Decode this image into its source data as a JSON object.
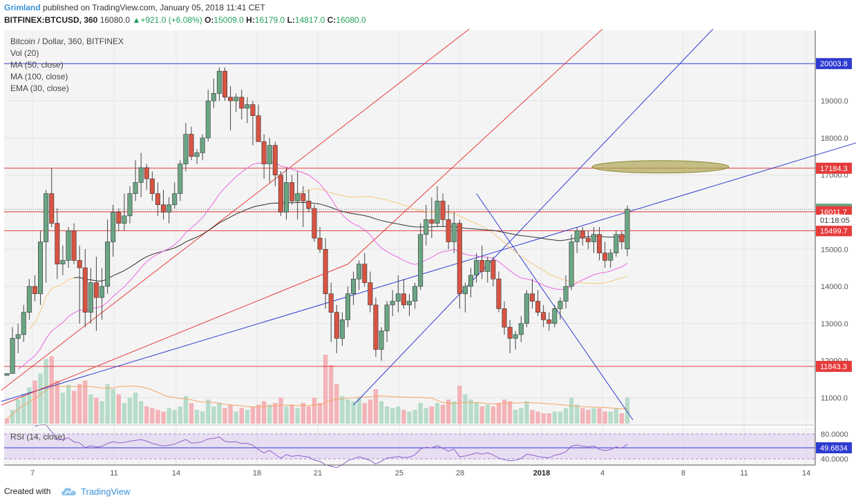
{
  "header": {
    "author": "Grimland",
    "published": "published on TradingView.com, January 05, 2018 11:41 CET",
    "symbol": "BITFINEX:BTCUSD, 360",
    "price": "16080.0",
    "change": "+921.0 (+6.08%)",
    "o_label": "O:",
    "o_value": "15009.0",
    "h_label": "H:",
    "h_value": "16179.0",
    "l_label": "L:",
    "l_value": "14817.0",
    "c_label": "C:",
    "c_value": "16080.0"
  },
  "legend": {
    "title": "Bitcoin / Dollar, 360, BITFINEX",
    "items": [
      "Vol (20)",
      "MA (50, close)",
      "MA (100, close)",
      "EMA (30, close)"
    ]
  },
  "rsi_label": "RSI (14, close)",
  "footer": {
    "created": "Created with",
    "brand": "TradingView"
  },
  "colors": {
    "up": "#6ba583",
    "down": "#d75442",
    "vol_up": "#b7dcc9",
    "vol_down": "#f3b3b7",
    "ma50": "#f5c77e",
    "ma100": "#333333",
    "ema30": "#e868e2",
    "hline_red": "#e63b3b",
    "trend_blue": "#2e3bd1",
    "ellipse": "#a7a14a"
  },
  "chart_data": {
    "type": "candlestick",
    "symbol": "BTCUSD",
    "timeframe": "360",
    "ylim": [
      10300,
      20900
    ],
    "y_ticks": [
      "11000.0",
      "12000.0",
      "13000.0",
      "14000.0",
      "15000.0",
      "16000.0",
      "17000.0",
      "18000.0",
      "19000.0"
    ],
    "x_ticks": [
      "7",
      "11",
      "14",
      "18",
      "21",
      "25",
      "28",
      "2018",
      "4",
      "8",
      "11",
      "14"
    ],
    "price_labels": [
      {
        "value": 20003.8,
        "label": "20003.8",
        "color": "#2e3bd1"
      },
      {
        "value": 17184.3,
        "label": "17184.3",
        "color": "#e63b3b"
      },
      {
        "value": 16080.0,
        "label": "16080.0",
        "color": "#6ba583"
      },
      {
        "value": 16011.7,
        "label": "16011.7",
        "color": "#e63b3b"
      },
      {
        "value": 15499.7,
        "label": "15499.7",
        "color": "#e63b3b"
      },
      {
        "value": 11843.3,
        "label": "11843.3",
        "color": "#e63b3b"
      }
    ],
    "countdown": "01:18:05",
    "horizontal_lines": [
      20003.8,
      17184.3,
      16011.7,
      15499.7,
      11843.3
    ],
    "ohlc": [
      [
        11600,
        11650,
        11600,
        11650
      ],
      [
        11650,
        12900,
        11650,
        12600
      ],
      [
        12600,
        13000,
        12200,
        12700
      ],
      [
        12700,
        13500,
        12500,
        13300
      ],
      [
        13300,
        14200,
        13100,
        14000
      ],
      [
        14000,
        14300,
        13600,
        13800
      ],
      [
        13800,
        15500,
        13500,
        15200
      ],
      [
        15200,
        16600,
        14100,
        16500
      ],
      [
        16500,
        17200,
        15600,
        15700
      ],
      [
        15700,
        16100,
        14200,
        14600
      ],
      [
        14600,
        15100,
        14300,
        14700
      ],
      [
        14700,
        15600,
        14500,
        15500
      ],
      [
        15500,
        15700,
        14600,
        14700
      ],
      [
        14700,
        15100,
        13000,
        14500
      ],
      [
        14500,
        15000,
        12900,
        13300
      ],
      [
        13300,
        14500,
        13000,
        14100
      ],
      [
        14100,
        14800,
        12800,
        13700
      ],
      [
        13700,
        14500,
        13100,
        14000
      ],
      [
        14000,
        15800,
        13800,
        15200
      ],
      [
        15200,
        16200,
        14800,
        16000
      ],
      [
        16000,
        16100,
        15500,
        15700
      ],
      [
        15700,
        16500,
        15500,
        15900
      ],
      [
        15900,
        16700,
        15700,
        16500
      ],
      [
        16500,
        17400,
        16300,
        16800
      ],
      [
        16800,
        17600,
        16400,
        17200
      ],
      [
        17200,
        17300,
        16600,
        16900
      ],
      [
        16900,
        17100,
        16300,
        16500
      ],
      [
        16500,
        16800,
        15900,
        16200
      ],
      [
        16200,
        16600,
        15800,
        16000
      ],
      [
        16000,
        16400,
        15700,
        16200
      ],
      [
        16200,
        16800,
        16100,
        16500
      ],
      [
        16500,
        17400,
        16300,
        17300
      ],
      [
        17300,
        18400,
        17100,
        18100
      ],
      [
        18100,
        18300,
        17400,
        17500
      ],
      [
        17500,
        17700,
        17300,
        17600
      ],
      [
        17600,
        18100,
        17400,
        18000
      ],
      [
        18000,
        19300,
        17900,
        19000
      ],
      [
        19000,
        19600,
        18800,
        19200
      ],
      [
        19200,
        19900,
        19000,
        19800
      ],
      [
        19800,
        19900,
        19000,
        19100
      ],
      [
        19100,
        19400,
        18200,
        19000
      ],
      [
        19000,
        19200,
        18700,
        19100
      ],
      [
        19100,
        19300,
        18500,
        18800
      ],
      [
        18800,
        19100,
        18400,
        18900
      ],
      [
        18900,
        19000,
        17800,
        18600
      ],
      [
        18600,
        18900,
        18000,
        17900
      ],
      [
        17900,
        18100,
        16900,
        17300
      ],
      [
        17300,
        18000,
        16800,
        17800
      ],
      [
        17800,
        17900,
        16700,
        17000
      ],
      [
        17000,
        17100,
        15900,
        16000
      ],
      [
        16000,
        17200,
        15800,
        16800
      ],
      [
        16800,
        17000,
        16200,
        16300
      ],
      [
        16300,
        17100,
        15800,
        16500
      ],
      [
        16500,
        16700,
        15600,
        16300
      ],
      [
        16300,
        16600,
        16000,
        16100
      ],
      [
        16100,
        16200,
        15200,
        15300
      ],
      [
        15300,
        15600,
        14900,
        15000
      ],
      [
        15000,
        15300,
        13400,
        13800
      ],
      [
        13800,
        14100,
        12500,
        13300
      ],
      [
        13300,
        13500,
        12200,
        12600
      ],
      [
        12600,
        13300,
        12400,
        13100
      ],
      [
        13100,
        14000,
        12900,
        13800
      ],
      [
        13800,
        14400,
        13500,
        14200
      ],
      [
        14200,
        14700,
        13900,
        14600
      ],
      [
        14600,
        14900,
        14000,
        14100
      ],
      [
        14100,
        14400,
        13300,
        13500
      ],
      [
        13500,
        13700,
        12100,
        12300
      ],
      [
        12300,
        12900,
        12000,
        12800
      ],
      [
        12800,
        13600,
        12500,
        13500
      ],
      [
        13500,
        13900,
        13200,
        13600
      ],
      [
        13600,
        14300,
        13300,
        13800
      ],
      [
        13800,
        14200,
        13400,
        13500
      ],
      [
        13500,
        13800,
        13200,
        13600
      ],
      [
        13600,
        14100,
        13400,
        14000
      ],
      [
        14000,
        15700,
        13900,
        15400
      ],
      [
        15400,
        16200,
        15100,
        15800
      ],
      [
        15800,
        16400,
        15300,
        15700
      ],
      [
        15700,
        16700,
        15600,
        16300
      ],
      [
        16300,
        16500,
        15600,
        15800
      ],
      [
        15800,
        16200,
        15000,
        15200
      ],
      [
        15200,
        16000,
        14900,
        15700
      ],
      [
        15700,
        15800,
        13400,
        13800
      ],
      [
        13800,
        14100,
        13300,
        14000
      ],
      [
        14000,
        14500,
        13700,
        14300
      ],
      [
        14300,
        14900,
        14100,
        14700
      ],
      [
        14700,
        15100,
        14200,
        14400
      ],
      [
        14400,
        14800,
        14100,
        14700
      ],
      [
        14700,
        14800,
        14000,
        14200
      ],
      [
        14200,
        14400,
        13300,
        13400
      ],
      [
        13400,
        13600,
        12700,
        12900
      ],
      [
        12900,
        13100,
        12200,
        12600
      ],
      [
        12600,
        12800,
        12300,
        12700
      ],
      [
        12700,
        13200,
        12500,
        13000
      ],
      [
        13000,
        13900,
        12900,
        13800
      ],
      [
        13800,
        14200,
        13400,
        13600
      ],
      [
        13600,
        13900,
        13200,
        13300
      ],
      [
        13300,
        13500,
        12900,
        13100
      ],
      [
        13100,
        13300,
        12800,
        13000
      ],
      [
        13000,
        13500,
        12900,
        13400
      ],
      [
        13400,
        13700,
        13100,
        13600
      ],
      [
        13600,
        14300,
        13400,
        14000
      ],
      [
        14000,
        15400,
        13900,
        15200
      ],
      [
        15200,
        15600,
        14900,
        15500
      ],
      [
        15500,
        15600,
        15100,
        15300
      ],
      [
        15300,
        15500,
        15000,
        15200
      ],
      [
        15200,
        15600,
        14900,
        15400
      ],
      [
        15400,
        15600,
        14700,
        14900
      ],
      [
        14900,
        15200,
        14500,
        14700
      ],
      [
        14700,
        15000,
        14500,
        14900
      ],
      [
        14900,
        15500,
        14800,
        15400
      ],
      [
        15400,
        15500,
        15000,
        15200
      ],
      [
        15009,
        16179,
        14817,
        16080
      ]
    ],
    "volume": [
      [
        6,
        0
      ],
      [
        16,
        1
      ],
      [
        28,
        1
      ],
      [
        35,
        1
      ],
      [
        42,
        1
      ],
      [
        50,
        0
      ],
      [
        58,
        1
      ],
      [
        75,
        1
      ],
      [
        78,
        0
      ],
      [
        50,
        0
      ],
      [
        36,
        1
      ],
      [
        45,
        1
      ],
      [
        38,
        0
      ],
      [
        46,
        0
      ],
      [
        50,
        0
      ],
      [
        34,
        1
      ],
      [
        30,
        0
      ],
      [
        26,
        1
      ],
      [
        46,
        1
      ],
      [
        40,
        1
      ],
      [
        34,
        0
      ],
      [
        24,
        1
      ],
      [
        30,
        1
      ],
      [
        36,
        1
      ],
      [
        26,
        1
      ],
      [
        20,
        0
      ],
      [
        18,
        0
      ],
      [
        16,
        0
      ],
      [
        14,
        0
      ],
      [
        18,
        1
      ],
      [
        16,
        1
      ],
      [
        20,
        1
      ],
      [
        32,
        1
      ],
      [
        24,
        0
      ],
      [
        16,
        1
      ],
      [
        14,
        1
      ],
      [
        28,
        1
      ],
      [
        20,
        1
      ],
      [
        24,
        1
      ],
      [
        18,
        0
      ],
      [
        22,
        0
      ],
      [
        14,
        1
      ],
      [
        18,
        0
      ],
      [
        16,
        1
      ],
      [
        20,
        0
      ],
      [
        22,
        0
      ],
      [
        26,
        0
      ],
      [
        22,
        1
      ],
      [
        24,
        0
      ],
      [
        30,
        0
      ],
      [
        20,
        1
      ],
      [
        22,
        0
      ],
      [
        18,
        1
      ],
      [
        24,
        0
      ],
      [
        20,
        0
      ],
      [
        30,
        0
      ],
      [
        24,
        0
      ],
      [
        80,
        0
      ],
      [
        68,
        0
      ],
      [
        46,
        0
      ],
      [
        32,
        1
      ],
      [
        28,
        1
      ],
      [
        26,
        1
      ],
      [
        30,
        1
      ],
      [
        24,
        0
      ],
      [
        28,
        0
      ],
      [
        40,
        0
      ],
      [
        26,
        1
      ],
      [
        20,
        1
      ],
      [
        18,
        1
      ],
      [
        20,
        1
      ],
      [
        16,
        0
      ],
      [
        14,
        1
      ],
      [
        16,
        1
      ],
      [
        24,
        1
      ],
      [
        18,
        1
      ],
      [
        20,
        0
      ],
      [
        24,
        1
      ],
      [
        22,
        0
      ],
      [
        28,
        0
      ],
      [
        26,
        1
      ],
      [
        44,
        0
      ],
      [
        34,
        1
      ],
      [
        28,
        1
      ],
      [
        24,
        1
      ],
      [
        20,
        0
      ],
      [
        22,
        1
      ],
      [
        20,
        0
      ],
      [
        24,
        0
      ],
      [
        28,
        0
      ],
      [
        26,
        0
      ],
      [
        16,
        1
      ],
      [
        18,
        1
      ],
      [
        26,
        1
      ],
      [
        16,
        0
      ],
      [
        14,
        0
      ],
      [
        12,
        0
      ],
      [
        12,
        0
      ],
      [
        14,
        1
      ],
      [
        14,
        1
      ],
      [
        18,
        1
      ],
      [
        30,
        1
      ],
      [
        22,
        1
      ],
      [
        18,
        0
      ],
      [
        16,
        0
      ],
      [
        18,
        1
      ],
      [
        18,
        0
      ],
      [
        14,
        0
      ],
      [
        14,
        1
      ],
      [
        18,
        1
      ],
      [
        12,
        0
      ],
      [
        30,
        1
      ]
    ],
    "rsi": {
      "latest": "49.6834",
      "levels": [
        "80.0000",
        "40.0000"
      ]
    }
  }
}
